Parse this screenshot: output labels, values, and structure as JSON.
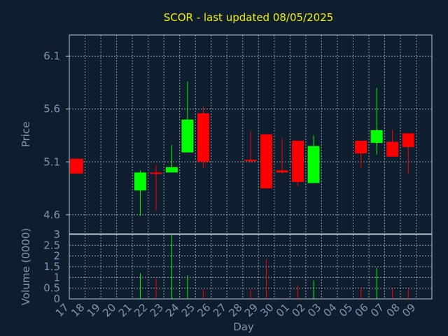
{
  "chart_data": [
    {
      "type": "candlestick",
      "title": "SCOR - last updated 08/05/2025",
      "ylabel": "Price",
      "ylim": [
        4.42,
        6.3
      ],
      "yticks": [
        "6.1",
        "5.6",
        "5.1",
        "4.6"
      ],
      "grid": true,
      "up_color": "#00ff00",
      "down_color": "#ff0000",
      "categories": [
        "17",
        "18",
        "19",
        "20",
        "21",
        "22",
        "23",
        "24",
        "25",
        "26",
        "27",
        "28",
        "29",
        "30",
        "01",
        "02",
        "03",
        "04",
        "05",
        "06",
        "07",
        "08",
        "09"
      ],
      "candles": [
        {
          "day": "17",
          "open": 5.13,
          "high": 5.13,
          "low": 4.99,
          "close": 4.99
        },
        {
          "day": "21",
          "open": 4.83,
          "high": 5.02,
          "low": 4.59,
          "close": 5.0
        },
        {
          "day": "22",
          "open": 5.0,
          "high": 5.07,
          "low": 4.64,
          "close": 4.99
        },
        {
          "day": "23",
          "open": 5.0,
          "high": 5.26,
          "low": 5.0,
          "close": 5.05
        },
        {
          "day": "24",
          "open": 5.19,
          "high": 5.86,
          "low": 5.19,
          "close": 5.5
        },
        {
          "day": "25",
          "open": 5.56,
          "high": 5.62,
          "low": 5.04,
          "close": 5.1
        },
        {
          "day": "28",
          "open": 5.12,
          "high": 5.39,
          "low": 5.09,
          "close": 5.11
        },
        {
          "day": "29",
          "open": 5.36,
          "high": 5.36,
          "low": 4.85,
          "close": 4.85
        },
        {
          "day": "30",
          "open": 5.02,
          "high": 5.32,
          "low": 4.99,
          "close": 5.0
        },
        {
          "day": "01",
          "open": 5.3,
          "high": 5.3,
          "low": 4.87,
          "close": 4.91
        },
        {
          "day": "02",
          "open": 4.9,
          "high": 5.35,
          "low": 4.9,
          "close": 5.25
        },
        {
          "day": "05",
          "open": 5.3,
          "high": 5.3,
          "low": 5.05,
          "close": 5.18
        },
        {
          "day": "06",
          "open": 5.28,
          "high": 5.8,
          "low": 5.17,
          "close": 5.4
        },
        {
          "day": "07",
          "open": 5.29,
          "high": 5.4,
          "low": 5.15,
          "close": 5.15
        },
        {
          "day": "08",
          "open": 5.37,
          "high": 5.37,
          "low": 4.99,
          "close": 5.24
        }
      ]
    },
    {
      "type": "bar",
      "ylabel": "Volume (0000)",
      "xlabel": "Day",
      "ylim": [
        0,
        3
      ],
      "yticks": [
        "3",
        "2.5",
        "2",
        "1.5",
        "1",
        "0.5",
        "0"
      ],
      "grid": true,
      "categories": [
        "17",
        "18",
        "19",
        "20",
        "21",
        "22",
        "23",
        "24",
        "25",
        "26",
        "27",
        "28",
        "29",
        "30",
        "01",
        "02",
        "03",
        "04",
        "05",
        "06",
        "07",
        "08",
        "09"
      ],
      "bars": [
        {
          "day": "21",
          "value": 1.2,
          "color": "#00ff00"
        },
        {
          "day": "22",
          "value": 0.95,
          "color": "#ff0000"
        },
        {
          "day": "23",
          "value": 3.0,
          "color": "#00ff00"
        },
        {
          "day": "24",
          "value": 1.1,
          "color": "#00ff00"
        },
        {
          "day": "25",
          "value": 0.45,
          "color": "#ff0000"
        },
        {
          "day": "28",
          "value": 0.45,
          "color": "#ff0000"
        },
        {
          "day": "29",
          "value": 1.85,
          "color": "#ff0000"
        },
        {
          "day": "30",
          "value": 0.05,
          "color": "#ff0000"
        },
        {
          "day": "01",
          "value": 0.65,
          "color": "#ff0000"
        },
        {
          "day": "02",
          "value": 0.85,
          "color": "#00ff00"
        },
        {
          "day": "05",
          "value": 0.55,
          "color": "#ff0000"
        },
        {
          "day": "06",
          "value": 1.45,
          "color": "#00ff00"
        },
        {
          "day": "07",
          "value": 0.5,
          "color": "#ff0000"
        },
        {
          "day": "08",
          "value": 0.5,
          "color": "#ff0000"
        }
      ]
    }
  ]
}
